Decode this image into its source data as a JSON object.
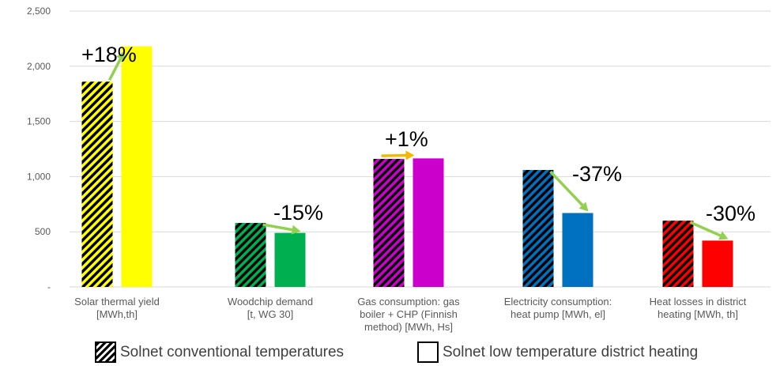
{
  "chart_data": {
    "type": "bar",
    "categories": [
      [
        "Solar thermal yield",
        "[MWh,th]"
      ],
      [
        "Woodchip demand",
        "[t, WG 30]"
      ],
      [
        "Gas consumption: gas",
        "boiler + CHP (Finnish",
        "method) [MWh, Hs]"
      ],
      [
        "Electricity consumption:",
        "heat pump [MWh, el]"
      ],
      [
        "Heat losses in district",
        "heating [MWh, th]"
      ]
    ],
    "series": [
      {
        "name": "Solnet conventional temperatures",
        "values": [
          1860,
          580,
          1160,
          1060,
          600
        ],
        "pattern": "hatched"
      },
      {
        "name": "Solnet low temperature district heating",
        "values": [
          2180,
          490,
          1165,
          670,
          420
        ],
        "pattern": "solid"
      }
    ],
    "colors": [
      "#FFFF00",
      "#00B050",
      "#CC00CC",
      "#0070C0",
      "#FF0000"
    ],
    "annotations": [
      "+18%",
      "-15%",
      "+1%",
      "-37%",
      "-30%"
    ],
    "arrow_colors": [
      "#92D050",
      "#92D050",
      "#F5B800",
      "#92D050",
      "#92D050"
    ],
    "y_ticks": [
      {
        "value": 0,
        "label": "-"
      },
      {
        "value": 500,
        "label": "500"
      },
      {
        "value": 1000,
        "label": "1,000"
      },
      {
        "value": 1500,
        "label": "1,500"
      },
      {
        "value": 2000,
        "label": "2,000"
      },
      {
        "value": 2500,
        "label": "2,500"
      }
    ],
    "ylim": [
      0,
      2500
    ],
    "grid": true,
    "legend_position": "bottom"
  }
}
